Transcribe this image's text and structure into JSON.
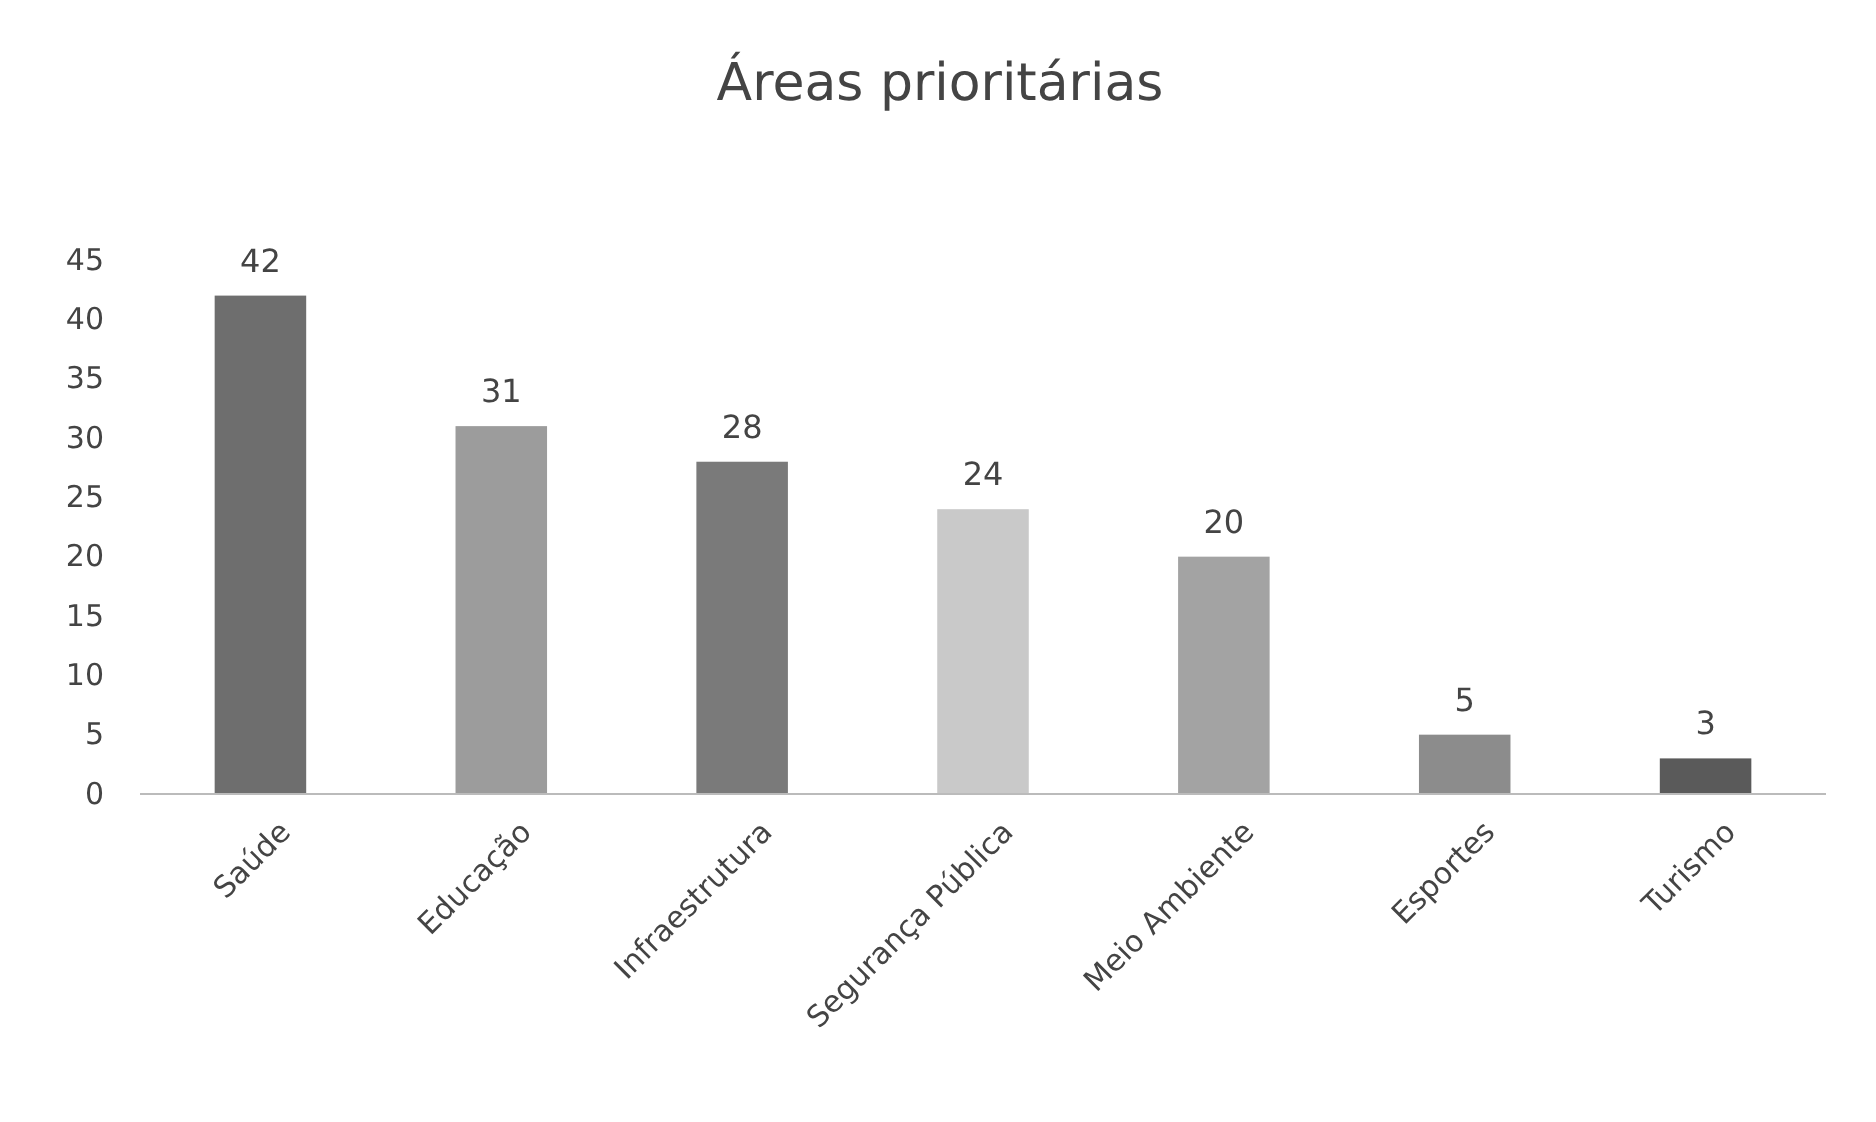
{
  "chart_data": {
    "type": "bar",
    "title": "Áreas prioritárias",
    "categories": [
      "Saúde",
      "Educação",
      "Infraestrutura",
      "Segurança Pública",
      "Meio Ambiente",
      "Esportes",
      "Turismo"
    ],
    "values": [
      42,
      31,
      28,
      24,
      20,
      5,
      3
    ],
    "colors": [
      "#6e6e6e",
      "#9c9c9c",
      "#7a7a7a",
      "#c9c9c9",
      "#a3a3a3",
      "#8c8c8c",
      "#5a5a5a"
    ],
    "ylim": [
      0,
      45
    ],
    "yticks": [
      0,
      5,
      10,
      15,
      20,
      25,
      30,
      35,
      40,
      45
    ],
    "data_labels": true
  }
}
